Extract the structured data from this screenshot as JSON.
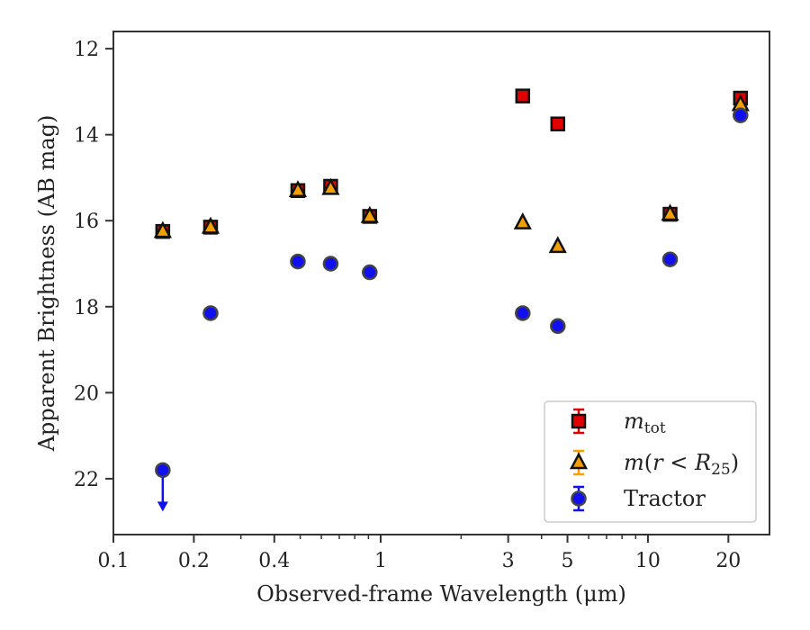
{
  "chart_data": {
    "type": "scatter",
    "xlabel": "Observed-frame Wavelength (μm)",
    "ylabel": "Apparent Brightness (AB mag)",
    "x_scale": "log",
    "xlim": [
      0.1,
      28.5
    ],
    "ylim": [
      23.3,
      11.6
    ],
    "y_inverted": true,
    "x_ticks": [
      0.1,
      0.2,
      0.4,
      1,
      3,
      5,
      10,
      20
    ],
    "x_tick_labels": [
      "0.1",
      "0.2",
      "0.4",
      "1",
      "3",
      "5",
      "10",
      "20"
    ],
    "y_ticks": [
      12,
      14,
      16,
      18,
      20,
      22
    ],
    "y_tick_labels": [
      "12",
      "14",
      "16",
      "18",
      "20",
      "22"
    ],
    "grid": false,
    "legend_position": "lower-right",
    "series": [
      {
        "name": "m_tot",
        "legend_label": "m_tot",
        "marker": "square",
        "color": "#e00000",
        "edge": "#111111",
        "x": [
          0.153,
          0.231,
          0.49,
          0.65,
          0.91,
          3.4,
          4.6,
          12.1,
          22.2
        ],
        "y": [
          16.25,
          16.15,
          15.3,
          15.2,
          15.9,
          13.1,
          13.75,
          15.85,
          13.15
        ]
      },
      {
        "name": "m(r < R25)",
        "legend_label": "m(r < R25)",
        "marker": "triangle",
        "color": "#f5a000",
        "edge": "#111111",
        "x": [
          0.153,
          0.231,
          0.49,
          0.65,
          0.91,
          3.4,
          4.6,
          12.1,
          22.2
        ],
        "y": [
          16.25,
          16.15,
          15.3,
          15.25,
          15.9,
          16.05,
          16.6,
          15.85,
          13.3
        ]
      },
      {
        "name": "Tractor",
        "legend_label": "Tractor",
        "marker": "circle",
        "color": "#1010ee",
        "edge": "#444444",
        "x": [
          0.153,
          0.231,
          0.49,
          0.65,
          0.91,
          3.4,
          4.6,
          12.1,
          22.2
        ],
        "y": [
          21.8,
          18.15,
          16.95,
          17.0,
          17.2,
          18.15,
          18.45,
          16.9,
          13.55
        ],
        "upper_limit_index": 0
      }
    ]
  }
}
